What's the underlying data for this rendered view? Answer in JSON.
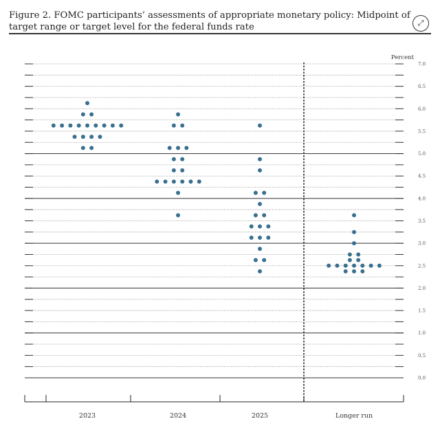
{
  "title": "Figure 2.  FOMC participants’ assessments of appropriate monetary policy: Midpoint of target range or target level for the federal funds rate",
  "expand_icon": "expand-arrows-icon",
  "chart_data": {
    "type": "scatter",
    "title": "Figure 2.  FOMC participants’ assessments of appropriate monetary policy: Midpoint of target range or target level for the federal funds rate",
    "ylabel": "Percent",
    "ylim": [
      0,
      7
    ],
    "yticks": [
      "0.0",
      "0.5",
      "1.0",
      "1.5",
      "2.0",
      "2.5",
      "3.0",
      "3.5",
      "4.0",
      "4.5",
      "5.0",
      "5.5",
      "6.0",
      "6.5",
      "7.0"
    ],
    "categories": [
      "2023",
      "2024",
      "2025",
      "Longer run"
    ],
    "dot_color": "#3a6f8f",
    "grid": true,
    "series": [
      {
        "category": "2023",
        "dots": [
          {
            "y": 6.125,
            "n": 1
          },
          {
            "y": 5.875,
            "n": 2
          },
          {
            "y": 5.625,
            "n": 9
          },
          {
            "y": 5.375,
            "n": 4
          },
          {
            "y": 5.125,
            "n": 2
          }
        ]
      },
      {
        "category": "2024",
        "dots": [
          {
            "y": 5.875,
            "n": 1
          },
          {
            "y": 5.625,
            "n": 2
          },
          {
            "y": 5.125,
            "n": 3
          },
          {
            "y": 4.875,
            "n": 2
          },
          {
            "y": 4.625,
            "n": 2
          },
          {
            "y": 4.375,
            "n": 6
          },
          {
            "y": 4.125,
            "n": 1
          },
          {
            "y": 3.625,
            "n": 1
          }
        ]
      },
      {
        "category": "2025",
        "dots": [
          {
            "y": 5.625,
            "n": 1
          },
          {
            "y": 4.875,
            "n": 1
          },
          {
            "y": 4.625,
            "n": 1
          },
          {
            "y": 4.125,
            "n": 2
          },
          {
            "y": 3.875,
            "n": 1
          },
          {
            "y": 3.625,
            "n": 2
          },
          {
            "y": 3.375,
            "n": 3
          },
          {
            "y": 3.125,
            "n": 3
          },
          {
            "y": 2.875,
            "n": 1
          },
          {
            "y": 2.625,
            "n": 2
          },
          {
            "y": 2.375,
            "n": 1
          }
        ]
      },
      {
        "category": "Longer run",
        "dots": [
          {
            "y": 3.625,
            "n": 1
          },
          {
            "y": 3.25,
            "n": 1
          },
          {
            "y": 3.0,
            "n": 1
          },
          {
            "y": 2.75,
            "n": 2
          },
          {
            "y": 2.625,
            "n": 2
          },
          {
            "y": 2.5,
            "n": 7
          },
          {
            "y": 2.375,
            "n": 3
          }
        ]
      }
    ]
  }
}
